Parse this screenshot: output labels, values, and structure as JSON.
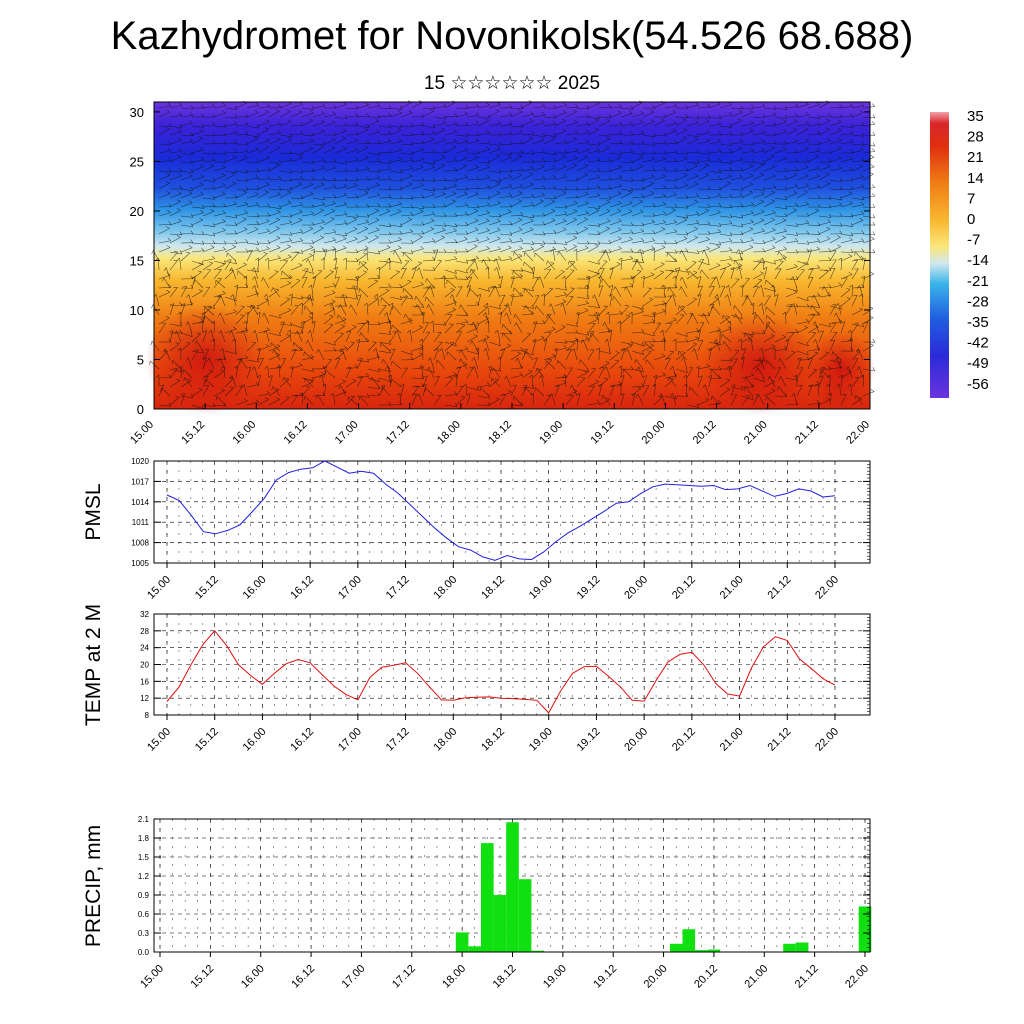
{
  "header": {
    "title": "Kazhydromet for Novonikolsk(54.526 68.688)",
    "subtitle": "15 ☆☆☆☆☆☆ 2025"
  },
  "colors": {
    "pmsl_line": "#2020e0",
    "temp_line": "#e01010",
    "precip_bar": "#10e010"
  },
  "chart_data": [
    {
      "type": "heatmap",
      "name": "cross-section",
      "x_ticks": [
        "15.00",
        "15.12",
        "16.00",
        "16.12",
        "17.00",
        "17.12",
        "18.00",
        "18.12",
        "19.00",
        "19.12",
        "20.00",
        "20.12",
        "21.00",
        "21.12",
        "22.00"
      ],
      "y_ticks": [
        0,
        5,
        10,
        15,
        20,
        25,
        30
      ],
      "ylim": [
        0,
        31
      ],
      "colorbar_labels": [
        "35",
        "28",
        "21",
        "14",
        "7",
        "0",
        "-7",
        "-14",
        "-21",
        "-28",
        "-35",
        "-42",
        "-49",
        "-56"
      ]
    },
    {
      "type": "line",
      "ylabel": "PMSL",
      "x_ticks": [
        "15.00",
        "15.12",
        "16.00",
        "16.12",
        "17.00",
        "17.12",
        "18.00",
        "18.12",
        "19.00",
        "19.12",
        "20.00",
        "20.12",
        "21.00",
        "21.12",
        "22.00"
      ],
      "y_ticks": [
        1005,
        1008,
        1011,
        1014,
        1017,
        1020
      ],
      "ylim": [
        1005,
        1020
      ],
      "values": [
        1015,
        1014.2,
        1012,
        1009.6,
        1009.3,
        1009.8,
        1010.6,
        1012.5,
        1014.5,
        1017.2,
        1018.3,
        1018.8,
        1019.0,
        1020.0,
        1019.1,
        1018.2,
        1018.5,
        1018.2,
        1016.6,
        1015.3,
        1013.6,
        1011.9,
        1010.2,
        1008.7,
        1007.4,
        1006.9,
        1005.9,
        1005.4,
        1006.1,
        1005.6,
        1005.5,
        1006.6,
        1008.1,
        1009.4,
        1010.4,
        1011.5,
        1012.6,
        1013.8,
        1014.0,
        1015.2,
        1016.2,
        1016.6,
        1016.5,
        1016.4,
        1016.3,
        1016.4,
        1015.8,
        1015.9,
        1016.4,
        1015.6,
        1014.8,
        1015.2,
        1015.9,
        1015.6,
        1014.7,
        1014.9
      ]
    },
    {
      "type": "line",
      "ylabel": "TEMP at 2 M",
      "x_ticks": [
        "15.00",
        "15.12",
        "16.00",
        "16.12",
        "17.00",
        "17.12",
        "18.00",
        "18.12",
        "19.00",
        "19.12",
        "20.00",
        "20.12",
        "21.00",
        "21.12",
        "22.00"
      ],
      "y_ticks": [
        8,
        12,
        16,
        20,
        24,
        28,
        32
      ],
      "ylim": [
        8,
        32
      ],
      "values": [
        11.2,
        14.6,
        19.9,
        24.7,
        28.0,
        24.5,
        19.9,
        17.4,
        15.3,
        17.9,
        20.2,
        21.2,
        20.4,
        17.6,
        14.9,
        12.9,
        11.6,
        16.9,
        19.3,
        19.8,
        20.4,
        17.9,
        14.7,
        11.6,
        11.5,
        12.1,
        12.2,
        12.3,
        12.0,
        11.9,
        11.7,
        11.5,
        8.5,
        13.7,
        17.9,
        19.5,
        19.6,
        17.2,
        14.7,
        11.5,
        11.3,
        16.2,
        20.6,
        22.4,
        22.9,
        19.9,
        15.5,
        13.0,
        12.5,
        19.2,
        24.2,
        26.6,
        25.7,
        21.4,
        19.1,
        16.6,
        15.1
      ]
    },
    {
      "type": "bar",
      "ylabel": "PRECIP, mm",
      "x_ticks": [
        "15.00",
        "15.12",
        "16.00",
        "16.12",
        "17.00",
        "17.12",
        "18.00",
        "18.12",
        "19.00",
        "19.12",
        "20.00",
        "20.12",
        "21.00",
        "21.12",
        "22.00"
      ],
      "y_ticks": [
        "0.0",
        "0.3",
        "0.6",
        "0.9",
        "1.2",
        "1.5",
        "1.8",
        "2.1"
      ],
      "ylim": [
        0,
        2.1
      ],
      "values": [
        0,
        0,
        0,
        0,
        0,
        0,
        0,
        0,
        0,
        0,
        0,
        0,
        0,
        0,
        0,
        0,
        0,
        0,
        0,
        0,
        0,
        0,
        0,
        0,
        0.31,
        0.09,
        1.72,
        0.9,
        2.05,
        1.15,
        0.02,
        0,
        0,
        0,
        0,
        0,
        0,
        0,
        0,
        0,
        0,
        0.13,
        0.36,
        0.03,
        0.04,
        0,
        0,
        0,
        0,
        0,
        0.13,
        0.15,
        0,
        0,
        0,
        0,
        0.72
      ]
    }
  ]
}
